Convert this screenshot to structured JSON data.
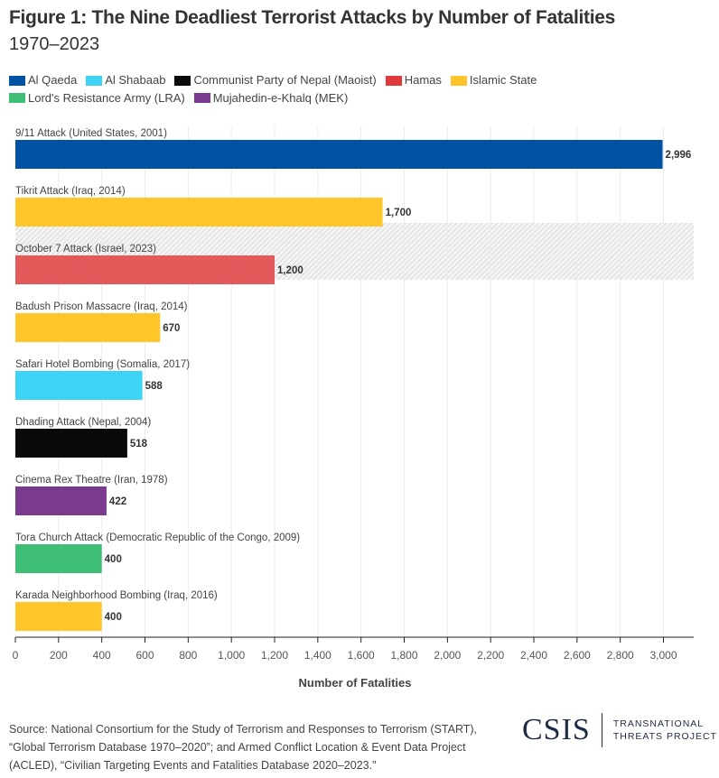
{
  "title": "Figure 1: The Nine Deadliest Terrorist Attacks by Number of Fatalities",
  "subtitle": "1970–2023",
  "legend": [
    {
      "name": "Al Qaeda",
      "color": "#0052a3"
    },
    {
      "name": "Al Shabaab",
      "color": "#3dd3f5"
    },
    {
      "name": "Communist Party of Nepal (Maoist)",
      "color": "#0a0a0a"
    },
    {
      "name": "Hamas",
      "color": "#e0393b"
    },
    {
      "name": "Islamic State",
      "color": "#ffc529"
    },
    {
      "name": "Lord's Resistance Army (LRA)",
      "color": "#3fbf76"
    },
    {
      "name": "Mujahedin-e-Khalq (MEK)",
      "color": "#7a3b8f"
    }
  ],
  "chart_data": {
    "type": "bar",
    "orientation": "horizontal",
    "categories": [
      "9/11 Attack (United States, 2001)",
      "Tikrit Attack (Iraq, 2014)",
      "October 7 Attack (Israel, 2023)",
      "Badush Prison Massacre (Iraq, 2014)",
      "Safari Hotel Bombing (Somalia, 2017)",
      "Dhading Attack (Nepal, 2004)",
      "Cinema Rex Theatre (Iran, 1978)",
      "Tora Church Attack (Democratic Republic of the Congo, 2009)",
      "Karada Neighborhood Bombing (Iraq, 2016)"
    ],
    "values": [
      2996,
      1700,
      1200,
      670,
      588,
      518,
      422,
      400,
      400
    ],
    "data_labels": [
      "2,996",
      "1,700",
      "1,200",
      "670",
      "588",
      "518",
      "422",
      "400",
      "400"
    ],
    "groups": [
      "Al Qaeda",
      "Islamic State",
      "Hamas",
      "Islamic State",
      "Al Shabaab",
      "Communist Party of Nepal (Maoist)",
      "Mujahedin-e-Khalq (MEK)",
      "Lord's Resistance Army (LRA)",
      "Islamic State"
    ],
    "highlighted": "October 7 Attack (Israel, 2023)",
    "xlabel": "Number of Fatalities",
    "xlim": [
      0,
      3140
    ],
    "xticks": [
      0,
      200,
      400,
      600,
      800,
      1000,
      1200,
      1400,
      1600,
      1800,
      2000,
      2200,
      2400,
      2600,
      2800,
      3000
    ],
    "xtick_labels": [
      "0",
      "200",
      "400",
      "600",
      "800",
      "1,000",
      "1,200",
      "1,400",
      "1,600",
      "1,800",
      "2,000",
      "2,200",
      "2,400",
      "2,600",
      "2,800",
      "3,000"
    ],
    "grid": "vertical",
    "legend_position": "top-left"
  },
  "source": "Source: National Consortium for the Study of Terrorism and Responses to Terrorism (START), “Global Terrorism Database 1970–2020”; and Armed Conflict Location & Event Data Project (ACLED), “Civilian Targeting Events and Fatalities Database 2020–2023.\"",
  "logo": {
    "main": "CSIS",
    "line1": "TRANSNATIONAL",
    "line2": "THREATS PROJECT"
  }
}
